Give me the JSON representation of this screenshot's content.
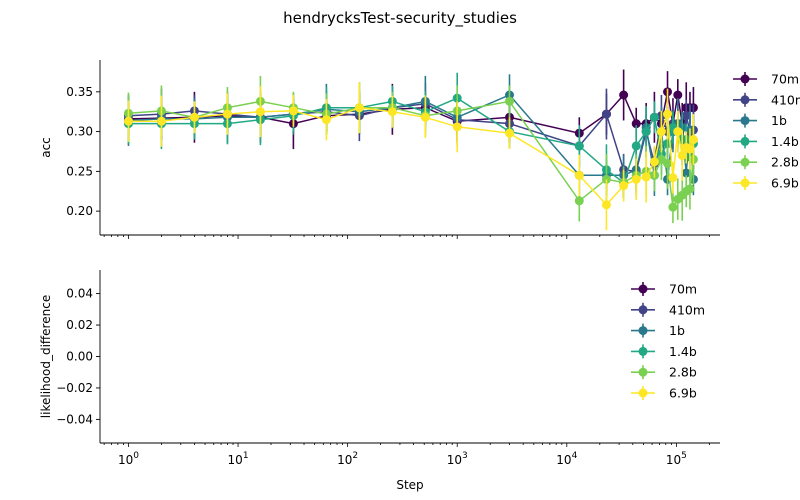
{
  "chart_data": [
    {
      "type": "line",
      "title": "hendrycksTest-security_studies",
      "xlabel": "",
      "ylabel": "acc",
      "xscale": "log",
      "xlim": [
        0.55,
        250000
      ],
      "ylim": [
        0.17,
        0.39
      ],
      "yticks": [
        "0.20",
        "0.25",
        "0.30",
        "0.35"
      ],
      "ytick_values": [
        0.2,
        0.25,
        0.3,
        0.35
      ],
      "legend_position": "outside-right",
      "error_bars": true,
      "series": [
        {
          "name": "70m",
          "color": "#440154",
          "x": [
            1,
            2,
            4,
            8,
            16,
            32,
            64,
            128,
            256,
            512,
            1000,
            3000,
            13000,
            23000,
            33000,
            43000,
            53000,
            63000,
            73000,
            83000,
            93000,
            103000,
            113000,
            123000,
            133000,
            143000
          ],
          "y": [
            0.316,
            0.317,
            0.318,
            0.32,
            0.318,
            0.31,
            0.32,
            0.322,
            0.328,
            0.33,
            0.313,
            0.318,
            0.298,
            0.322,
            0.346,
            0.31,
            0.31,
            0.318,
            0.31,
            0.35,
            0.31,
            0.346,
            0.31,
            0.33,
            0.33,
            0.33
          ]
        },
        {
          "name": "410m",
          "color": "#414487",
          "x": [
            1,
            2,
            4,
            8,
            16,
            32,
            64,
            128,
            256,
            512,
            1000,
            3000,
            13000,
            23000,
            33000,
            43000,
            53000,
            63000,
            73000,
            83000,
            93000,
            103000,
            113000,
            123000,
            133000,
            143000
          ],
          "y": [
            0.32,
            0.322,
            0.326,
            0.322,
            0.318,
            0.322,
            0.325,
            0.32,
            0.33,
            0.335,
            0.315,
            0.31,
            0.282,
            0.322,
            0.252,
            0.25,
            0.3,
            0.26,
            0.32,
            0.3,
            0.31,
            0.31,
            0.29,
            0.32,
            0.3,
            0.302
          ]
        },
        {
          "name": "1b",
          "color": "#2a788e",
          "x": [
            1,
            2,
            4,
            8,
            16,
            32,
            64,
            128,
            256,
            512,
            1000,
            3000,
            13000,
            23000,
            33000,
            43000,
            53000,
            63000,
            73000,
            83000,
            93000,
            103000,
            113000,
            123000,
            133000,
            143000
          ],
          "y": [
            0.314,
            0.316,
            0.316,
            0.318,
            0.318,
            0.322,
            0.328,
            0.325,
            0.33,
            0.338,
            0.318,
            0.346,
            0.245,
            0.245,
            0.245,
            0.252,
            0.305,
            0.245,
            0.3,
            0.24,
            0.3,
            0.31,
            0.305,
            0.248,
            0.302,
            0.24
          ]
        },
        {
          "name": "1.4b",
          "color": "#22a884",
          "x": [
            1,
            2,
            4,
            8,
            16,
            32,
            64,
            128,
            256,
            512,
            1000,
            3000,
            13000,
            23000,
            33000,
            43000,
            53000,
            63000,
            73000,
            83000,
            93000,
            103000,
            113000,
            123000,
            133000,
            143000
          ],
          "y": [
            0.31,
            0.31,
            0.31,
            0.31,
            0.315,
            0.32,
            0.33,
            0.33,
            0.338,
            0.325,
            0.342,
            0.3,
            0.282,
            0.252,
            0.236,
            0.282,
            0.3,
            0.318,
            0.272,
            0.285,
            0.305,
            0.3,
            0.29,
            0.29,
            0.268,
            0.285
          ]
        },
        {
          "name": "2.8b",
          "color": "#7ad151",
          "x": [
            1,
            2,
            4,
            8,
            16,
            32,
            64,
            128,
            256,
            512,
            1000,
            3000,
            13000,
            23000,
            33000,
            43000,
            53000,
            63000,
            73000,
            83000,
            93000,
            103000,
            113000,
            123000,
            133000,
            143000
          ],
          "y": [
            0.323,
            0.326,
            0.318,
            0.33,
            0.338,
            0.33,
            0.322,
            0.33,
            0.33,
            0.32,
            0.326,
            0.338,
            0.213,
            0.24,
            0.236,
            0.245,
            0.25,
            0.245,
            0.265,
            0.26,
            0.205,
            0.215,
            0.22,
            0.225,
            0.228,
            0.265
          ]
        },
        {
          "name": "6.9b",
          "color": "#fde725",
          "x": [
            1,
            2,
            4,
            8,
            16,
            32,
            64,
            128,
            256,
            512,
            1000,
            3000,
            13000,
            23000,
            33000,
            43000,
            53000,
            63000,
            73000,
            83000,
            93000,
            103000,
            113000,
            123000,
            133000,
            143000
          ],
          "y": [
            0.313,
            0.313,
            0.318,
            0.322,
            0.325,
            0.326,
            0.315,
            0.33,
            0.325,
            0.318,
            0.306,
            0.298,
            0.245,
            0.208,
            0.232,
            0.24,
            0.243,
            0.262,
            0.3,
            0.322,
            0.242,
            0.3,
            0.27,
            0.28,
            0.278,
            0.29
          ]
        }
      ]
    },
    {
      "type": "line",
      "title": "",
      "xlabel": "Step",
      "ylabel": "likelihood_difference",
      "xscale": "log",
      "xlim": [
        0.55,
        250000
      ],
      "ylim": [
        -0.055,
        0.055
      ],
      "yticks": [
        "−0.04",
        "−0.02",
        "0.00",
        "0.02",
        "0.04"
      ],
      "ytick_values": [
        -0.04,
        -0.02,
        0.0,
        0.02,
        0.04
      ],
      "xticks": [
        "10",
        "10",
        "10",
        "10",
        "10",
        "10"
      ],
      "xtick_exponents": [
        "0",
        "1",
        "2",
        "3",
        "4",
        "5"
      ],
      "xtick_values": [
        1,
        10,
        100,
        1000,
        10000,
        100000
      ],
      "legend_position": "upper-right",
      "series": [
        {
          "name": "70m",
          "color": "#440154",
          "x": [],
          "y": []
        },
        {
          "name": "410m",
          "color": "#414487",
          "x": [],
          "y": []
        },
        {
          "name": "1b",
          "color": "#2a788e",
          "x": [],
          "y": []
        },
        {
          "name": "1.4b",
          "color": "#22a884",
          "x": [],
          "y": []
        },
        {
          "name": "2.8b",
          "color": "#7ad151",
          "x": [],
          "y": []
        },
        {
          "name": "6.9b",
          "color": "#fde725",
          "x": [],
          "y": []
        }
      ]
    }
  ]
}
